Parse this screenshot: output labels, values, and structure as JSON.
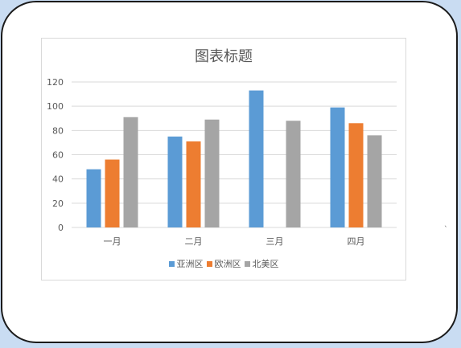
{
  "chart_data": {
    "type": "bar",
    "title": "图表标题",
    "categories": [
      "一月",
      "二月",
      "三月",
      "四月"
    ],
    "series": [
      {
        "name": "亚洲区",
        "color": "#5b9bd5",
        "values": [
          48,
          75,
          113,
          99
        ]
      },
      {
        "name": "欧洲区",
        "color": "#ed7d31",
        "values": [
          56,
          71,
          null,
          86
        ]
      },
      {
        "name": "北美区",
        "color": "#a5a5a5",
        "values": [
          91,
          89,
          88,
          76
        ]
      }
    ],
    "ylim": [
      0,
      120
    ],
    "yticks": [
      0,
      20,
      40,
      60,
      80,
      100,
      120
    ],
    "grid": true,
    "legend": "bottom"
  }
}
